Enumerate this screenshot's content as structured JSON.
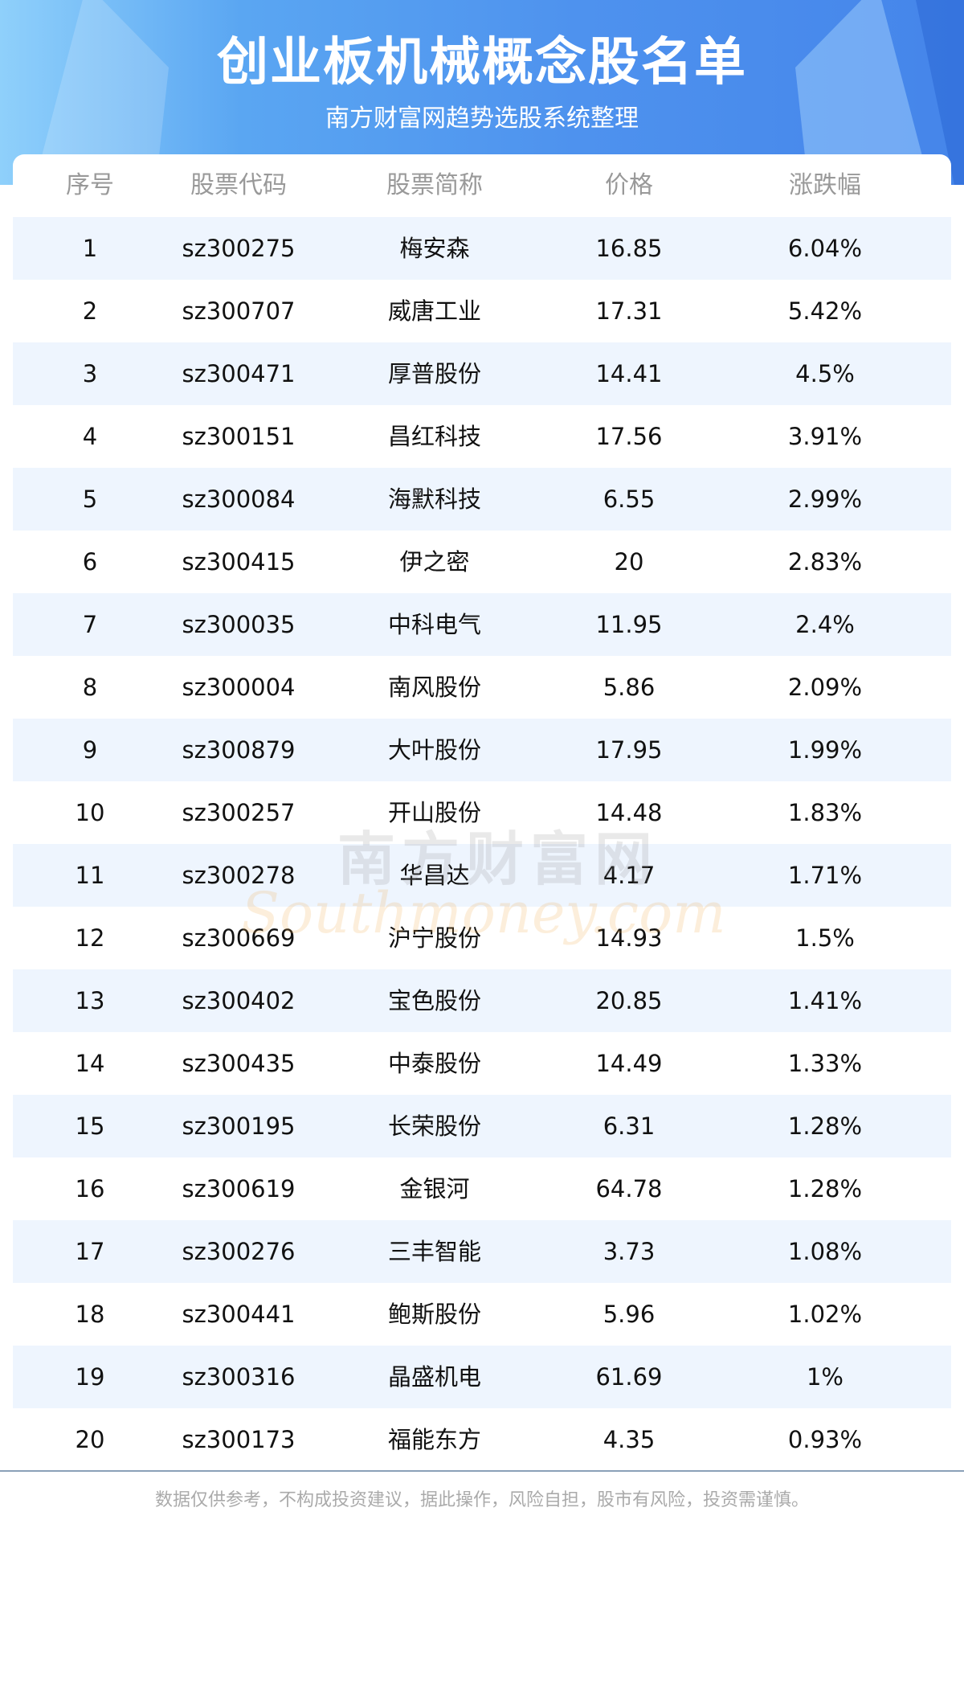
{
  "header": {
    "title": "创业板机械概念股名单",
    "subtitle": "南方财富网趋势选股系统整理"
  },
  "colors": {
    "banner": "#4e92ee",
    "row_alt": "#eef5fe",
    "header_text": "#999999",
    "divider": "#8aa0b8"
  },
  "table": {
    "columns": [
      "序号",
      "股票代码",
      "股票简称",
      "价格",
      "涨跌幅"
    ],
    "rows": [
      [
        "1",
        "sz300275",
        "梅安森",
        "16.85",
        "6.04%"
      ],
      [
        "2",
        "sz300707",
        "威唐工业",
        "17.31",
        "5.42%"
      ],
      [
        "3",
        "sz300471",
        "厚普股份",
        "14.41",
        "4.5%"
      ],
      [
        "4",
        "sz300151",
        "昌红科技",
        "17.56",
        "3.91%"
      ],
      [
        "5",
        "sz300084",
        "海默科技",
        "6.55",
        "2.99%"
      ],
      [
        "6",
        "sz300415",
        "伊之密",
        "20",
        "2.83%"
      ],
      [
        "7",
        "sz300035",
        "中科电气",
        "11.95",
        "2.4%"
      ],
      [
        "8",
        "sz300004",
        "南风股份",
        "5.86",
        "2.09%"
      ],
      [
        "9",
        "sz300879",
        "大叶股份",
        "17.95",
        "1.99%"
      ],
      [
        "10",
        "sz300257",
        "开山股份",
        "14.48",
        "1.83%"
      ],
      [
        "11",
        "sz300278",
        "华昌达",
        "4.17",
        "1.71%"
      ],
      [
        "12",
        "sz300669",
        "沪宁股份",
        "14.93",
        "1.5%"
      ],
      [
        "13",
        "sz300402",
        "宝色股份",
        "20.85",
        "1.41%"
      ],
      [
        "14",
        "sz300435",
        "中泰股份",
        "14.49",
        "1.33%"
      ],
      [
        "15",
        "sz300195",
        "长荣股份",
        "6.31",
        "1.28%"
      ],
      [
        "16",
        "sz300619",
        "金银河",
        "64.78",
        "1.28%"
      ],
      [
        "17",
        "sz300276",
        "三丰智能",
        "3.73",
        "1.08%"
      ],
      [
        "18",
        "sz300441",
        "鲍斯股份",
        "5.96",
        "1.02%"
      ],
      [
        "19",
        "sz300316",
        "晶盛机电",
        "61.69",
        "1%"
      ],
      [
        "20",
        "sz300173",
        "福能东方",
        "4.35",
        "0.93%"
      ]
    ]
  },
  "watermark": {
    "cn": "南方财富网",
    "en": "Southmoney.com"
  },
  "footer": {
    "disclaimer": "数据仅供参考，不构成投资建议，据此操作，风险自担，股市有风险，投资需谨慎。"
  }
}
